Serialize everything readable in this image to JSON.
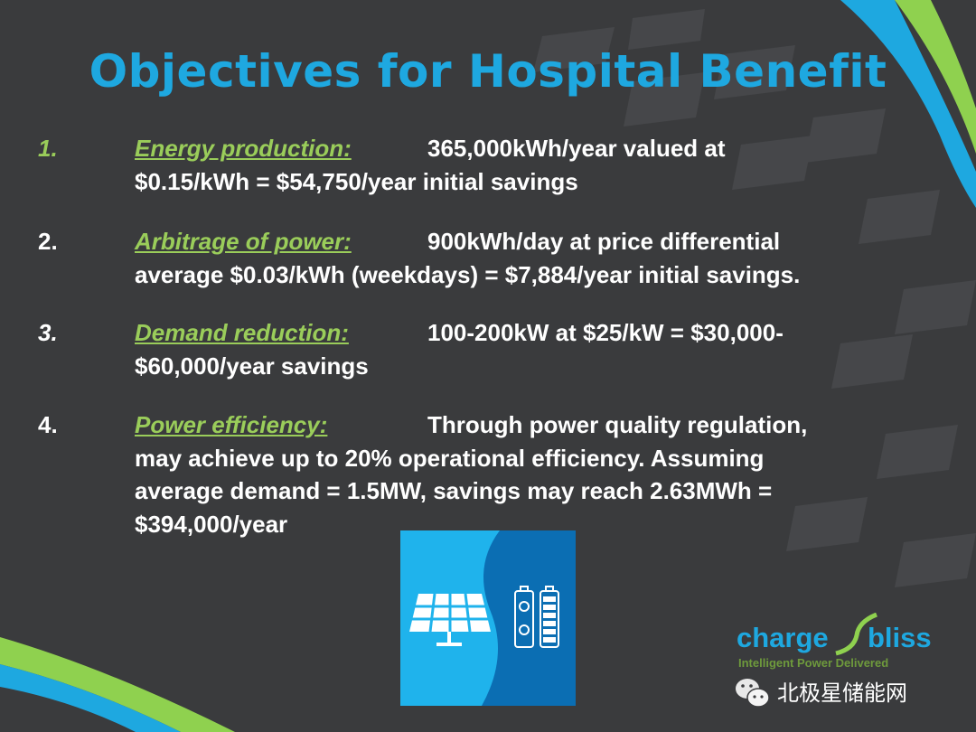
{
  "slide": {
    "title": "Objectives for Hospital Benefit",
    "items": [
      {
        "number": "1.",
        "label": "Energy production:",
        "first_line": "365,000kWh/year valued at",
        "rest": [
          "$0.15/kWh = $54,750/year initial savings"
        ]
      },
      {
        "number": "2.",
        "label": "Arbitrage of power:",
        "first_line": "900kWh/day at price differential",
        "rest": [
          "average $0.03/kWh (weekdays) = $7,884/year initial savings."
        ]
      },
      {
        "number": "3.",
        "label": "Demand reduction:",
        "first_line": "100-200kW at $25/kW = $30,000-",
        "rest": [
          "$60,000/year savings"
        ]
      },
      {
        "number": "4.",
        "label": "Power efficiency:",
        "first_line": "Through power quality regulation,",
        "rest": [
          "may achieve up to 20% operational efficiency.  Assuming",
          "average demand = 1.5MW, savings may reach 2.63MWh =",
          "$394,000/year"
        ]
      }
    ]
  },
  "logo": {
    "brand_left": "charge",
    "brand_right": "bliss",
    "tagline": "Intelligent Power Delivered"
  },
  "watermark": {
    "text": "北极星储能网",
    "icon": "wechat-icon"
  },
  "graphic": {
    "icons": [
      "solar-panel-icon",
      "battery-icon"
    ]
  },
  "colors": {
    "background": "#3a3b3d",
    "title": "#1ea8e0",
    "label": "#9acd5a",
    "graphic_light": "#1fb3ec",
    "graphic_dark": "#0b6eb3"
  }
}
